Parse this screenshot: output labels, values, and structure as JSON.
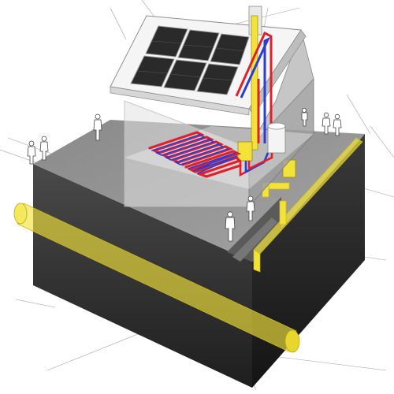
{
  "diagram": {
    "subject": "house-with-solar-thermal-and-underfloor-heating",
    "colors": {
      "background": "#ffffff",
      "ground_top": "#9b9b9b",
      "ground_front": "#3a3a3a",
      "ground_side": "#2a2a2a",
      "wall": "#efefef",
      "wall_side": "#a8a8a8",
      "roof": "#f3f3f3",
      "solar_panel": "#2b2b2b",
      "gas_pipe": "#f2e23a",
      "hot_pipe": "#e0202a",
      "cold_pipe": "#2a3bd6",
      "construction_line": "#9a9a9a"
    },
    "elements": [
      "solar-panels",
      "chimney-flue",
      "underfloor-heating-loops",
      "gas-boiler",
      "hot-water-tank",
      "gas-meter",
      "gas-main-pipe",
      "people-figures"
    ]
  }
}
